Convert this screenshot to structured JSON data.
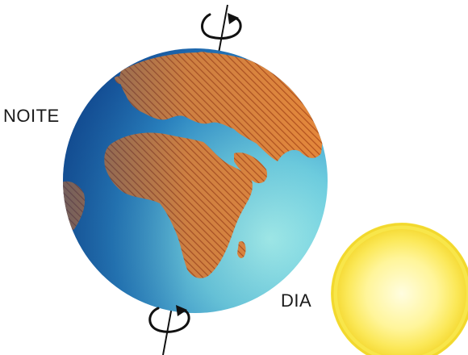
{
  "labels": {
    "night": "NOITE",
    "day": "DIA"
  },
  "colors": {
    "ocean_dark": "#1f6fb3",
    "ocean_mid": "#3a9bd0",
    "ocean_light": "#8fe0e6",
    "land": "#e07a2a",
    "land_hatch": "#c85a1a",
    "sun_core": "#fffbb8",
    "sun_edge": "#fbe64a",
    "axis": "#111111"
  },
  "icons": {
    "rotation_top": "rotation-arrow-icon",
    "rotation_bottom": "rotation-arrow-icon"
  }
}
